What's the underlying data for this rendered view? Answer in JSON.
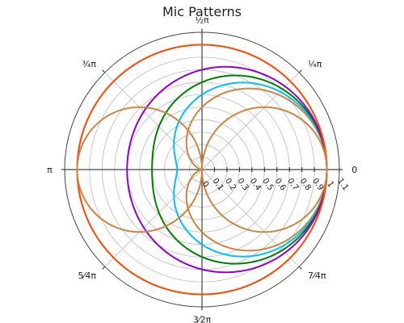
{
  "chart_data": {
    "type": "polar-line",
    "title": "Mic Patterns",
    "radial_axis": {
      "range": [
        0,
        1.1
      ],
      "tick_labels": [
        "0",
        "0.1",
        "0.2",
        "0.3",
        "0.4",
        "0.5",
        "0.6",
        "0.7",
        "0.8",
        "0.9",
        "1",
        "1.1"
      ],
      "tick_values": [
        0,
        0.1,
        0.2,
        0.3,
        0.4,
        0.5,
        0.6,
        0.7,
        0.8,
        0.9,
        1.0,
        1.1
      ],
      "grid": true
    },
    "angular_axis": {
      "tick_angles_deg": [
        0,
        45,
        90,
        135,
        180,
        225,
        270,
        315
      ],
      "tick_labels": [
        "0",
        "¼π",
        "½π",
        "¾π",
        "π",
        "5⁄4π",
        "3⁄2π",
        "7⁄4π"
      ],
      "grid": true
    },
    "legend": "none",
    "series": [
      {
        "pattern_a": 0.5,
        "color": "#cd853f"
      },
      {
        "pattern_a": 0.6,
        "color": "#00bfff"
      },
      {
        "pattern_a": 0.7,
        "color": "#008000"
      },
      {
        "pattern_a": 0.8,
        "color": "#9400d3"
      },
      {
        "pattern_a": 1.0,
        "color": "#ff4500"
      },
      {
        "pattern_a": 0.0,
        "color": "#cd853f"
      }
    ]
  }
}
